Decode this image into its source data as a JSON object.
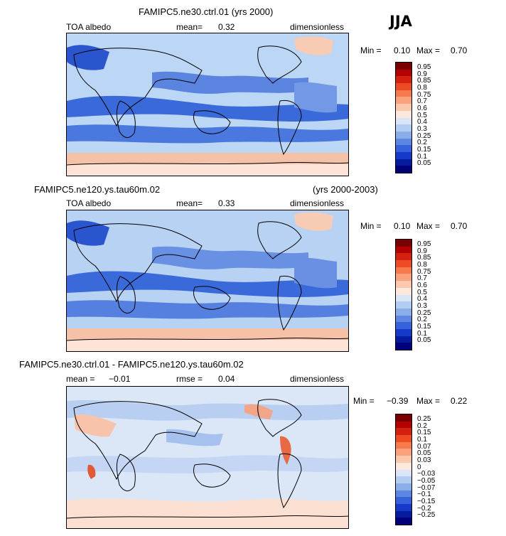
{
  "season": "JJA",
  "panels": [
    {
      "title": "FAMIPC5.ne30.ctrl.01 (yrs 2000)",
      "title_right": "",
      "field": "TOA albedo",
      "stat1_label": "mean=",
      "stat1_value": "0.32",
      "stat2_label": "",
      "stat2_value": "",
      "units": "dimensionless",
      "min_label": "Min =",
      "min_value": "0.10",
      "max_label": "Max =",
      "max_value": "0.70",
      "colorbar_labels": [
        "0.95",
        "0.9",
        "0.85",
        "0.8",
        "0.75",
        "0.7",
        "0.6",
        "0.5",
        "0.4",
        "0.3",
        "0.25",
        "0.2",
        "0.15",
        "0.1",
        "0.05"
      ]
    },
    {
      "title": "FAMIPC5.ne120.ys.tau60m.02",
      "title_right": "(yrs 2000-2003)",
      "field": "TOA albedo",
      "stat1_label": "mean=",
      "stat1_value": "0.33",
      "stat2_label": "",
      "stat2_value": "",
      "units": "dimensionless",
      "min_label": "Min =",
      "min_value": "0.10",
      "max_label": "Max =",
      "max_value": "0.70",
      "colorbar_labels": [
        "0.95",
        "0.9",
        "0.85",
        "0.8",
        "0.75",
        "0.7",
        "0.6",
        "0.5",
        "0.4",
        "0.3",
        "0.25",
        "0.2",
        "0.15",
        "0.1",
        "0.05"
      ]
    },
    {
      "title": "FAMIPC5.ne30.ctrl.01 - FAMIPC5.ne120.ys.tau60m.02",
      "title_right": "",
      "field": "",
      "stat1_label": "mean =",
      "stat1_value": "−0.01",
      "stat2_label": "rmse =",
      "stat2_value": "0.04",
      "units": "dimensionless",
      "min_label": "Min =",
      "min_value": "−0.39",
      "max_label": "Max =",
      "max_value": "0.22",
      "colorbar_labels": [
        "0.25",
        "0.2",
        "0.15",
        "0.1",
        "0.07",
        "0.05",
        "0.03",
        "0",
        "−0.03",
        "−0.05",
        "−0.07",
        "−0.1",
        "−0.15",
        "−0.2",
        "−0.25"
      ]
    }
  ],
  "colors": {
    "colorbar": [
      "#7a0000",
      "#b40000",
      "#d4200f",
      "#ec4b24",
      "#f67a4d",
      "#fba27c",
      "#fbc8ae",
      "#fde8dc",
      "#d8e6f7",
      "#b3ccf1",
      "#8aaeea",
      "#5c88e3",
      "#3663dc",
      "#1739c9",
      "#061a9e",
      "#00007a"
    ],
    "ocean_low": "#3462d8",
    "ocean_mid": "#8aaeea",
    "ice": "#f5c2a8"
  }
}
